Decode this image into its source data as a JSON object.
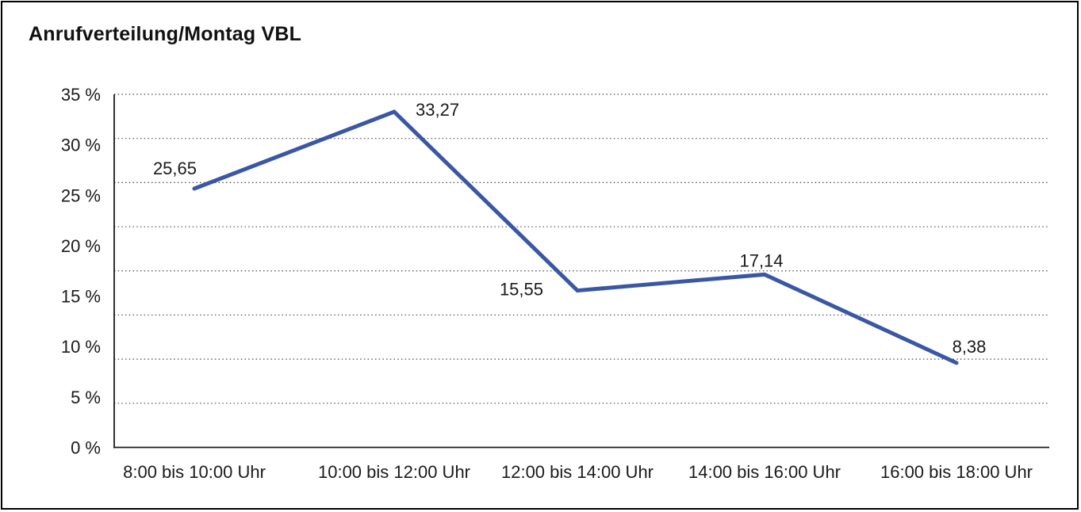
{
  "chart_data": {
    "type": "line",
    "title": "Anrufverteilung/Montag VBL",
    "xlabel": "",
    "ylabel": "",
    "categories": [
      "8:00 bis 10:00 Uhr",
      "10:00 bis 12:00 Uhr",
      "12:00 bis 14:00 Uhr",
      "14:00 bis 16:00 Uhr",
      "16:00 bis 18:00 Uhr"
    ],
    "series": [
      {
        "name": "Anrufverteilung Montag VBL",
        "values": [
          25.65,
          33.27,
          15.55,
          17.14,
          8.38
        ],
        "value_labels": [
          "25,65",
          "33,27",
          "15,55",
          "17,14",
          "8,38"
        ],
        "color": "#3A57A6"
      }
    ],
    "ylim": [
      0,
      35
    ],
    "y_ticks": [
      {
        "value": 0,
        "label": "0 %"
      },
      {
        "value": 5,
        "label": "5 %"
      },
      {
        "value": 10,
        "label": "10 %"
      },
      {
        "value": 15,
        "label": "15 %"
      },
      {
        "value": 20,
        "label": "20 %"
      },
      {
        "value": 25,
        "label": "25 %"
      },
      {
        "value": 30,
        "label": "30 %"
      },
      {
        "value": 35,
        "label": "35 %"
      }
    ],
    "gridline_divisions": 8,
    "grid": "horizontal-dotted",
    "legend": "none",
    "value_label_positions": [
      "above-left",
      "right",
      "left",
      "above",
      "above-right"
    ],
    "colors": {
      "line": "#3A57A6",
      "grid": "#4a4a4a",
      "axis": "#1a1a1a",
      "text": "#1a1a1a",
      "background": "#ffffff",
      "border": "#000000"
    }
  }
}
